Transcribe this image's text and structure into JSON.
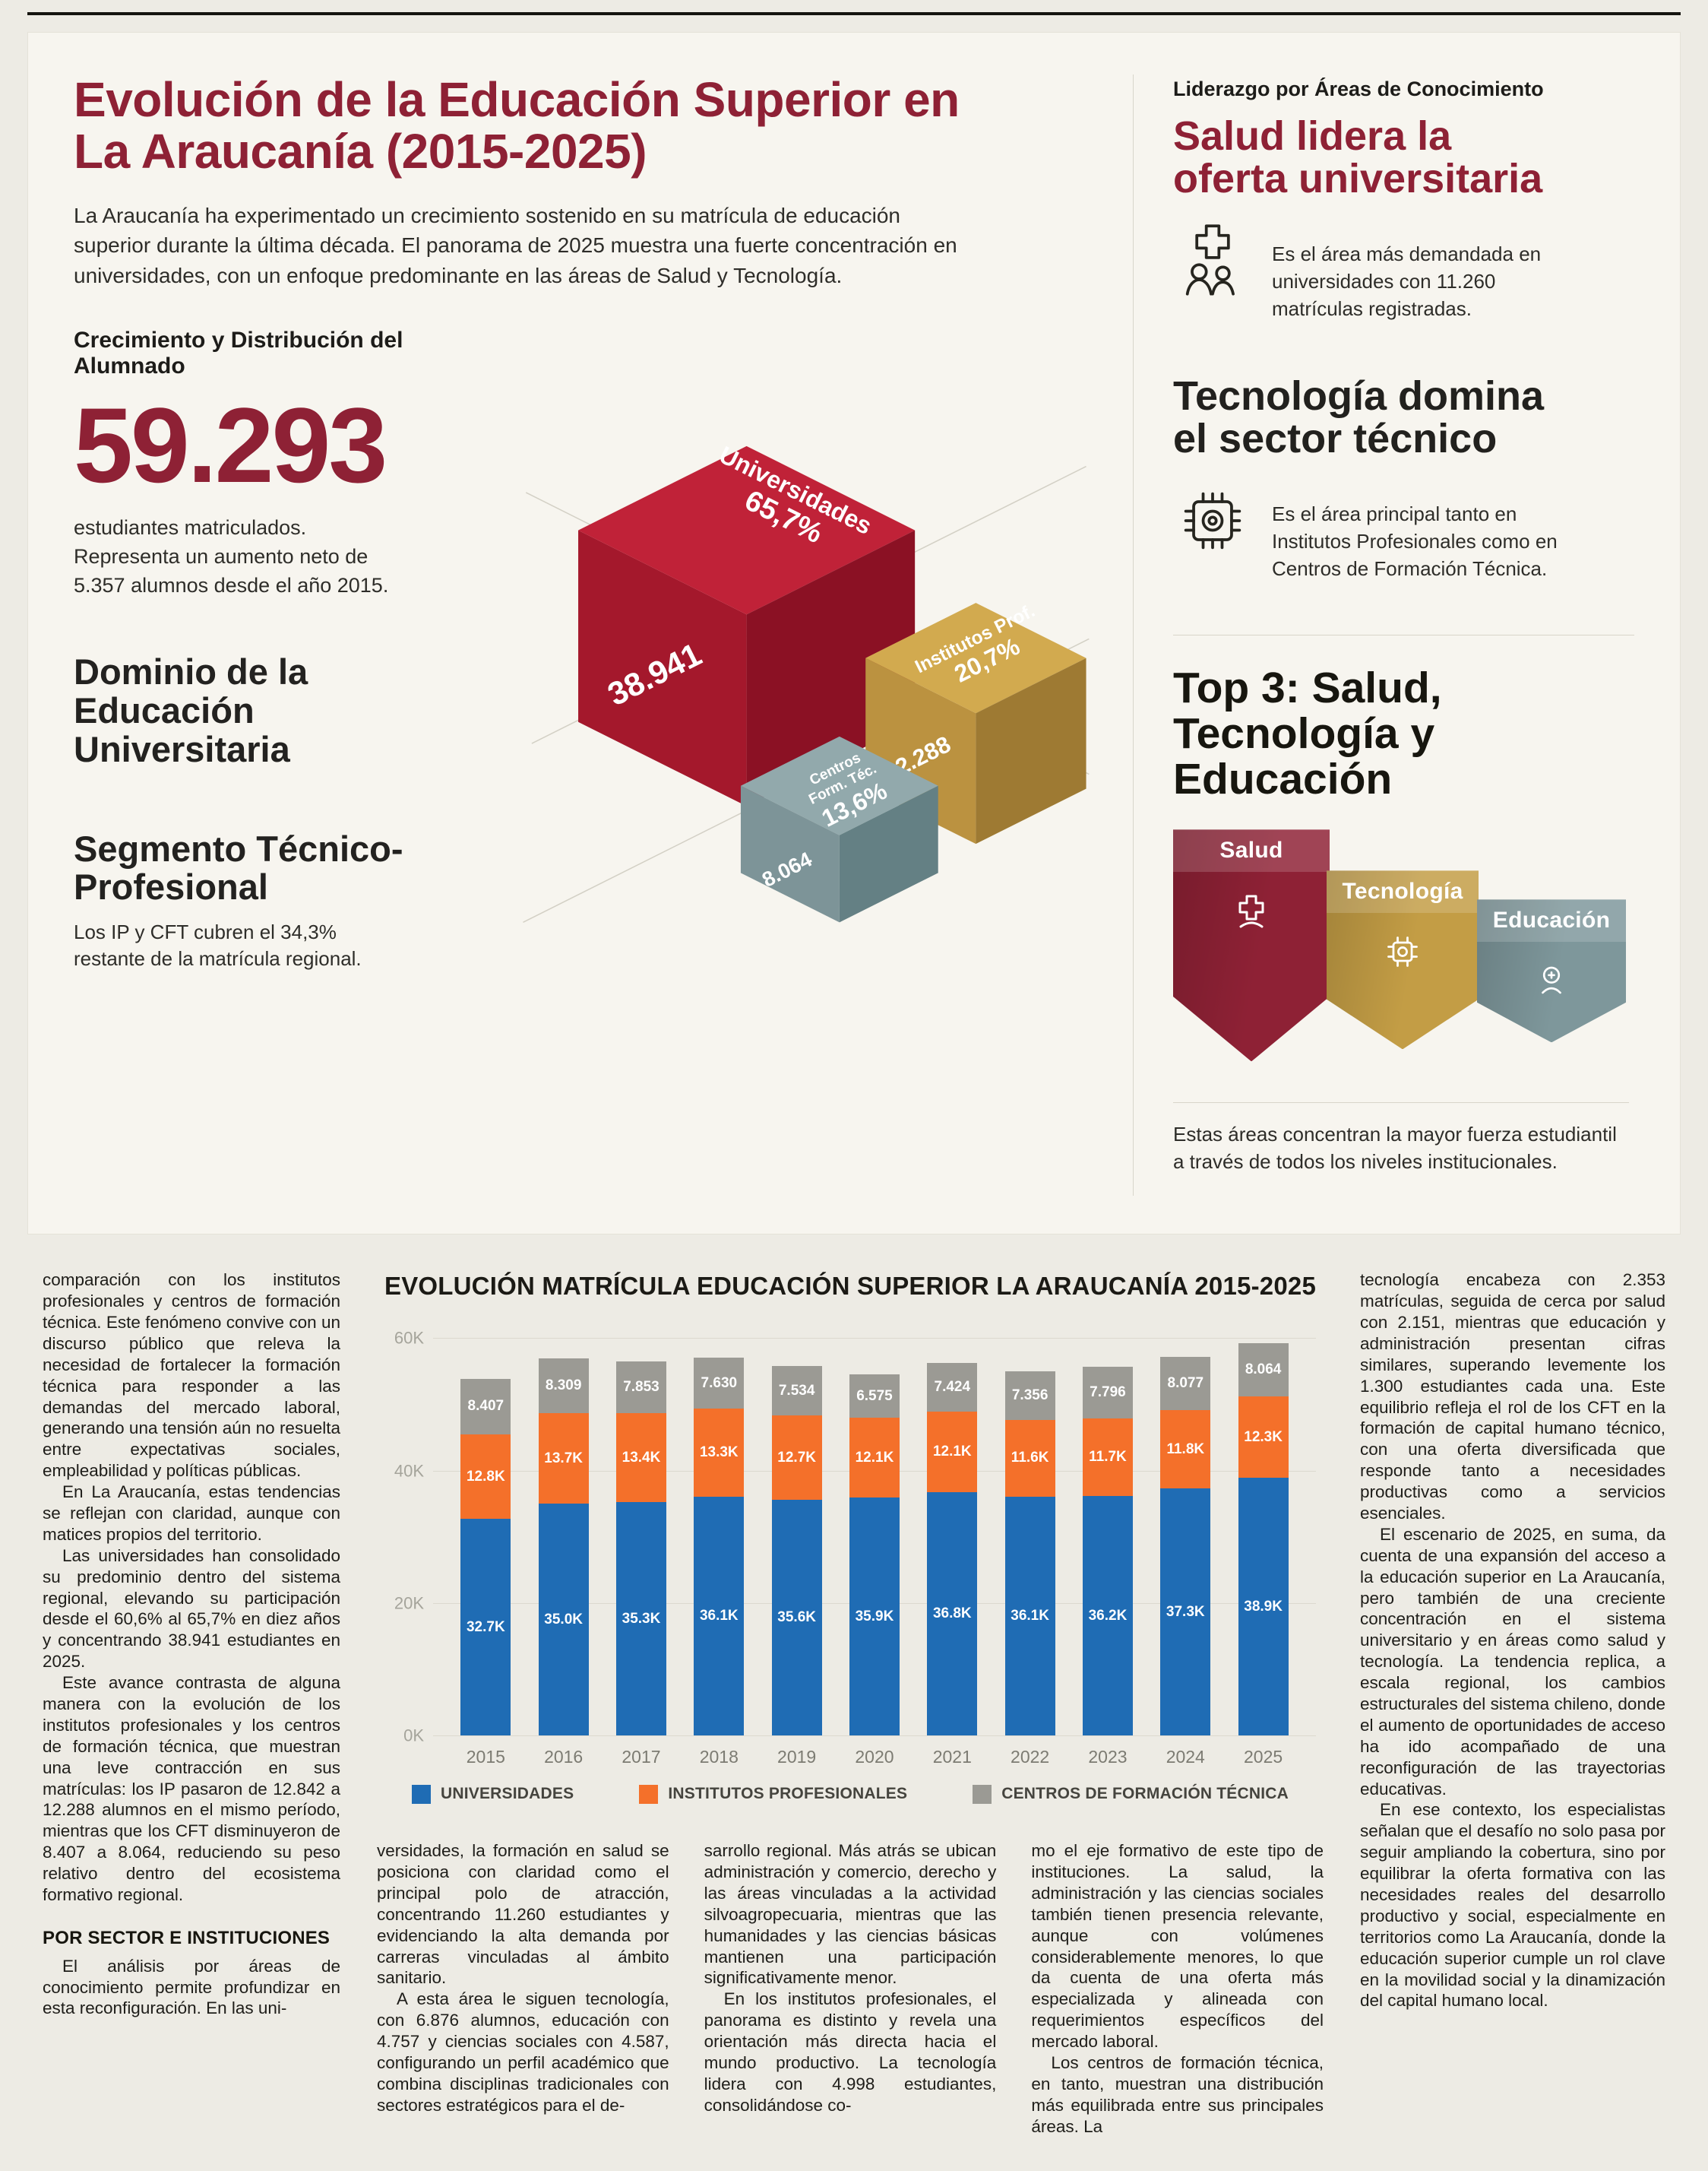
{
  "infographic": {
    "title": "Evolución de la Educación Superior en La Araucanía (2015-2025)",
    "intro": "La Araucanía ha experimentado un crecimiento sostenido en su matrícula de educación superior durante la última década. El panorama de 2025 muestra una fuerte concentración en universidades, con un enfoque predominante en las áreas de Salud y Tecnología.",
    "stat_label": "Crecimiento y Distribución del Alumnado",
    "big_number": "59.293",
    "big_number_caption": "estudiantes matriculados. Representa un aumento neto de 5.357 alumnos desde el año 2015.",
    "heading_univ": "Dominio de la Educación Universitaria",
    "heading_tecnico": "Segmento Técnico-Profesional",
    "tecnico_caption": "Los IP y CFT cubren el 34,3% restante de la matrícula regional.",
    "treemap": {
      "blocks": [
        {
          "name": "Universidades",
          "pct": "65,7%",
          "value": "38.941",
          "color_top": "#c02238",
          "color_left": "#a4182c",
          "color_right": "#8b1124"
        },
        {
          "name": "Institutos Prof.",
          "pct": "20,7%",
          "value": "12.288",
          "color_top": "#d2aa4f",
          "color_left": "#bb9240",
          "color_right": "#9e7a33"
        },
        {
          "name_line1": "Centros",
          "name_line2": "Form. Téc.",
          "pct": "13,6%",
          "value": "8.064",
          "color_top": "#92a9ac",
          "color_left": "#7d9498",
          "color_right": "#648084"
        }
      ]
    },
    "right": {
      "kicker": "Liderazgo por Áreas de Conocimiento",
      "salud_title": "Salud lidera la oferta universitaria",
      "salud_text": "Es el área más demandada en universidades con 11.260 matrículas registradas.",
      "tec_title": "Tecnología domina el sector técnico",
      "tec_text": "Es el área principal tanto en Institutos Profesionales como en Centros de Formación Técnica.",
      "top3_title": "Top 3: Salud, Tecnología y Educación",
      "top3_items": [
        {
          "label": "Salud",
          "color": "#8e2135"
        },
        {
          "label": "Tecnología",
          "color": "#c39d45"
        },
        {
          "label": "Educación",
          "color": "#7e979b"
        }
      ],
      "top3_caption": "Estas áreas concentran la mayor fuerza estudiantil a través de todos los niveles institucionales."
    }
  },
  "chart_data": {
    "type": "bar",
    "stacked": true,
    "title": "EVOLUCIÓN MATRÍCULA EDUCACIÓN SUPERIOR LA ARAUCANÍA 2015-2025",
    "categories": [
      "2015",
      "2016",
      "2017",
      "2018",
      "2019",
      "2020",
      "2021",
      "2022",
      "2023",
      "2024",
      "2025"
    ],
    "series": [
      {
        "name": "UNIVERSIDADES",
        "color": "#1f6cb4",
        "values": [
          32700,
          35000,
          35300,
          36100,
          35600,
          35900,
          36800,
          36100,
          36200,
          37300,
          38900
        ],
        "labels": [
          "32.7K",
          "35.0K",
          "35.3K",
          "36.1K",
          "35.6K",
          "35.9K",
          "36.8K",
          "36.1K",
          "36.2K",
          "37.3K",
          "38.9K"
        ]
      },
      {
        "name": "INSTITUTOS PROFESIONALES",
        "color": "#f4702a",
        "values": [
          12800,
          13700,
          13400,
          13300,
          12700,
          12100,
          12100,
          11600,
          11700,
          11800,
          12300
        ],
        "labels": [
          "12.8K",
          "13.7K",
          "13.4K",
          "13.3K",
          "12.7K",
          "12.1K",
          "12.1K",
          "11.6K",
          "11.7K",
          "11.8K",
          "12.3K"
        ]
      },
      {
        "name": "CENTROS DE FORMACIÓN TÉCNICA",
        "color": "#9b9a94",
        "values": [
          8407,
          8309,
          7853,
          7630,
          7534,
          6575,
          7424,
          7356,
          7796,
          8077,
          8064
        ],
        "labels": [
          "8.407",
          "8.309",
          "7.853",
          "7.630",
          "7.534",
          "6.575",
          "7.424",
          "7.356",
          "7.796",
          "8.077",
          "8.064"
        ]
      }
    ],
    "ylim": [
      0,
      60000
    ],
    "y_ticks": [
      {
        "label": "0K",
        "value": 0
      },
      {
        "label": "20K",
        "value": 20000
      },
      {
        "label": "40K",
        "value": 40000
      },
      {
        "label": "60K",
        "value": 60000
      }
    ],
    "grid": true,
    "legend_position": "bottom"
  },
  "article": {
    "left_col_1": [
      "comparación con los institutos profesionales y centros de formación técnica. Este fenómeno convive con un discurso público que releva la necesidad de fortalecer la formación técnica para responder a las demandas del mercado laboral, generando una tensión aún no resuelta entre expectativas sociales, empleabilidad y políticas públicas.",
      "En La Araucanía, estas tendencias se reflejan con claridad, aunque con matices propios del territorio.",
      "Las universidades han consolidado su predominio dentro del sistema regional, elevando su participación desde el 60,6% al 65,7% en diez años y concentrando 38.941 estudiantes en 2025.",
      "Este avance contrasta de alguna manera con la evolución de los institutos profesionales y los centros de formación técnica, que muestran una leve contracción en sus matrículas: los IP pasaron de 12.842 a 12.288 alumnos en el mismo período, mientras que los CFT disminuyeron de 8.407 a 8.064, reduciendo su peso relativo dentro del ecosistema formativo regional."
    ],
    "subhead": "POR SECTOR E INSTITUCIONES",
    "left_col_2": [
      "El análisis por áreas de conocimiento permite profundizar en esta reconfiguración. En las uni-"
    ],
    "mid_col_1": [
      "versidades, la formación en salud se posiciona con claridad como el principal polo de atracción, concentrando 11.260 estudiantes y evidenciando la alta demanda por carreras vinculadas al ámbito sanitario.",
      "A esta área le siguen tecnología, con 6.876 alumnos, educación con 4.757 y ciencias sociales con 4.587, configurando un perfil académico que combina disciplinas tradicionales con sectores estratégicos para el de-"
    ],
    "mid_col_2": [
      "sarrollo regional. Más atrás se ubican administración y comercio, derecho y las áreas vinculadas a la actividad silvoagropecuaria, mientras que las humanidades y las ciencias básicas mantienen una participación significativamente menor.",
      "En los institutos profesionales, el panorama es distinto y revela una orientación más directa hacia el mundo productivo. La tecnología lidera con 4.998 estudiantes, consolidándose co-"
    ],
    "mid_col_3": [
      "mo el eje formativo de este tipo de instituciones. La salud, la administración y las ciencias sociales también tienen presencia relevante, aunque con volúmenes considerablemente menores, lo que da cuenta de una oferta más especializada y alineada con requerimientos específicos del mercado laboral.",
      "Los centros de formación técnica, en tanto, muestran una distribución más equilibrada entre sus principales áreas. La"
    ],
    "right_col": [
      "tecnología encabeza con 2.353 matrículas, seguida de cerca por salud con 2.151, mientras que educación y administración presentan cifras similares, superando levemente los 1.300 estudiantes cada una. Este equilibrio refleja el rol de los CFT en la formación de capital humano técnico, con una oferta diversificada que responde tanto a necesidades productivas como a servicios esenciales.",
      "El escenario de 2025, en suma, da cuenta de una expansión del acceso a la educación superior en La Araucanía, pero también de una creciente concentración en el sistema universitario y en áreas como salud y tecnología. La tendencia replica, a escala regional, los cambios estructurales del sistema chileno, donde el aumento de oportunidades de acceso ha ido acompañado de una reconfiguración de las trayectorias educativas.",
      "En ese contexto, los especialistas señalan que el desafío no solo pasa por seguir ampliando la cobertura, sino por equilibrar la oferta formativa con las necesidades reales del desarrollo productivo y social, especialmente en territorios como La Araucanía, donde la educación superior cumple un rol clave en la movilidad social y la dinamización del capital humano local."
    ]
  }
}
